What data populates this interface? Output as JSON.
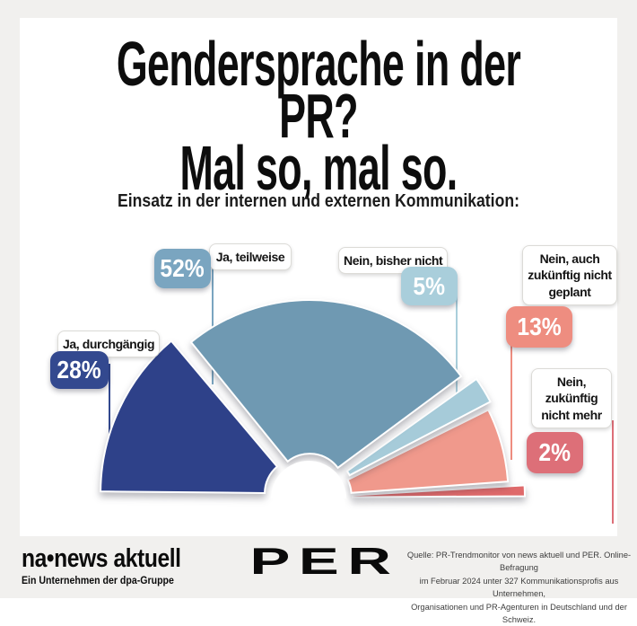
{
  "title": {
    "line1": "Gendersprache in der PR?",
    "line2": "Mal so, mal so."
  },
  "subtitle": "Einsatz in der internen und externen Kommunikation:",
  "colors": {
    "background": "#f1f0ee",
    "card": "#ffffff",
    "title_text": "#0d0d0d",
    "source_text": "#3d3d3d"
  },
  "chart_data": {
    "type": "pie",
    "layout": "semicircle-gauge-exploded",
    "title": "Gendersprache in der PR? Mal so, mal so.",
    "subtitle": "Einsatz in der internen und externen Kommunikation:",
    "unit": "%",
    "total": 100,
    "categories": [
      "Ja, durchgängig",
      "Ja, teilweise",
      "Nein, bisher nicht",
      "Nein, auch zukünftig nicht geplant",
      "Nein, zukünftig nicht mehr"
    ],
    "values": [
      28,
      52,
      5,
      13,
      2
    ],
    "segments": [
      {
        "label": "Ja, durchgängig",
        "value": 28,
        "pct": "28%",
        "color": "#2e4189",
        "badge_color": "#33498f"
      },
      {
        "label": "Ja, teilweise",
        "value": 52,
        "pct": "52%",
        "color": "#6f99b2",
        "badge_color": "#7aa5c0"
      },
      {
        "label": "Nein, bisher nicht",
        "value": 5,
        "pct": "5%",
        "color": "#a6cbd9",
        "badge_color": "#a9cedb"
      },
      {
        "label": "Nein, auch zukünftig nicht geplant",
        "value": 13,
        "pct": "13%",
        "color": "#f0998c",
        "badge_color": "#ee8d80"
      },
      {
        "label": "Nein, zukünftig nicht mehr",
        "value": 2,
        "pct": "2%",
        "color": "#df6a6b",
        "badge_color": "#dd6f78"
      }
    ]
  },
  "footer": {
    "brand": "na•news aktuell",
    "brand_tagline": "Ein Unternehmen der dpa-Gruppe",
    "partner_logo": "PER",
    "source_line1": "Quelle: PR-Trendmonitor von news aktuell und PER. Online-Befragung",
    "source_line2": "im Februar 2024 unter 327 Kommunikationsprofis aus Unternehmen,",
    "source_line3": "Organisationen und PR-Agenturen in Deutschland und der Schweiz."
  }
}
